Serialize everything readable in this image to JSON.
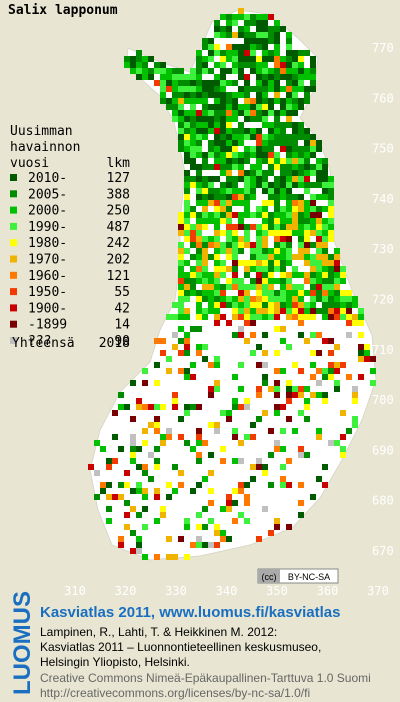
{
  "title": "Salix lapponum",
  "map": {
    "xticks": [
      310,
      320,
      330,
      340,
      350,
      360,
      370
    ],
    "yticks": [
      770,
      760,
      750,
      740,
      730,
      720,
      710,
      700,
      690,
      680,
      670
    ]
  },
  "legend": {
    "heading": [
      "Uusimman",
      "havainnon"
    ],
    "col_year": "vuosi",
    "col_count": "lkm",
    "rows": [
      {
        "label": "2010-",
        "count": 127,
        "color": "#005a00"
      },
      {
        "label": "2005-",
        "count": 388,
        "color": "#008c00"
      },
      {
        "label": "2000-",
        "count": 250,
        "color": "#00c000"
      },
      {
        "label": "1990-",
        "count": 487,
        "color": "#3cf03c"
      },
      {
        "label": "1980-",
        "count": 242,
        "color": "#ffff00"
      },
      {
        "label": "1970-",
        "count": 202,
        "color": "#f0b400"
      },
      {
        "label": "1960-",
        "count": 121,
        "color": "#ff7800"
      },
      {
        "label": "1950-",
        "count": 55,
        "color": "#f03c00"
      },
      {
        "label": "1900-",
        "count": 42,
        "color": "#c80000"
      },
      {
        "label": "-1899",
        "count": 14,
        "color": "#780000"
      },
      {
        "label": "???",
        "count": 90,
        "color": "#c0c0c0"
      }
    ],
    "total_label": "Yhteensä",
    "total": 2018
  },
  "badge": "BY-NC-SA",
  "footer": {
    "logo": "LUOMUS",
    "title": "Kasviatlas 2011, www.luomus.fi/kasviatlas",
    "citation": [
      "Lampinen, R., Lahti, T. & Heikkinen M. 2012:",
      "Kasviatlas 2011 – Luonnontieteellinen keskusmuseo,",
      "Helsingin Yliopisto, Helsinki."
    ],
    "license": [
      "Creative Commons Nimeä-Epäkaupallinen-Tarttuva 1.0 Suomi",
      "http://creativecommons.org/licenses/by-nc-sa/1.0/fi"
    ]
  }
}
